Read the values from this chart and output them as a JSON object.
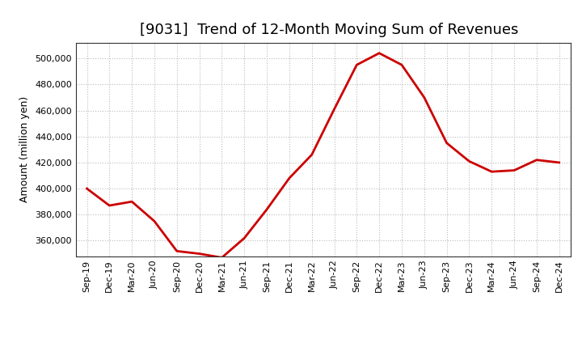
{
  "title": "[9031]  Trend of 12-Month Moving Sum of Revenues",
  "ylabel": "Amount (million yen)",
  "line_color": "#cc0000",
  "background_color": "#ffffff",
  "plot_bg_color": "#ffffff",
  "grid_color": "#bbbbbb",
  "x_labels": [
    "Sep-19",
    "Dec-19",
    "Mar-20",
    "Jun-20",
    "Sep-20",
    "Dec-20",
    "Mar-21",
    "Jun-21",
    "Sep-21",
    "Dec-21",
    "Mar-22",
    "Jun-22",
    "Sep-22",
    "Dec-22",
    "Mar-23",
    "Jun-23",
    "Sep-23",
    "Dec-23",
    "Mar-24",
    "Jun-24",
    "Sep-24",
    "Dec-24"
  ],
  "y_values": [
    400000,
    387000,
    390000,
    375000,
    352000,
    350000,
    347000,
    362000,
    384000,
    408000,
    426000,
    461000,
    495000,
    504000,
    495000,
    470000,
    435000,
    421000,
    413000,
    414000,
    422000,
    420000
  ],
  "ylim_min": 348000,
  "ylim_max": 512000,
  "ytick_values": [
    360000,
    380000,
    400000,
    420000,
    440000,
    460000,
    480000,
    500000
  ],
  "title_fontsize": 13,
  "ylabel_fontsize": 9,
  "tick_fontsize": 8,
  "line_width": 2.0
}
